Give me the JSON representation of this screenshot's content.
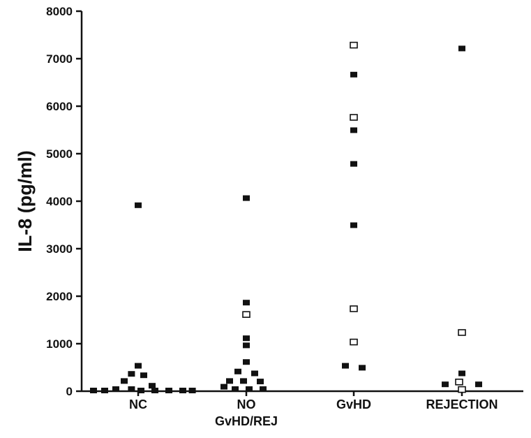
{
  "chart_data": {
    "type": "scatter",
    "ylabel": "IL-8 (pg/ml)",
    "xlabel": "",
    "ylim": [
      0,
      8000
    ],
    "yticks": [
      "0",
      "1000",
      "2000",
      "3000",
      "4000",
      "5000",
      "6000",
      "7000",
      "8000"
    ],
    "grid": false,
    "categories": [
      {
        "label_lines": [
          "NC"
        ]
      },
      {
        "label_lines": [
          "NO",
          "GvHD/REJ"
        ]
      },
      {
        "label_lines": [
          "GvHD"
        ]
      },
      {
        "label_lines": [
          "REJECTION"
        ]
      }
    ],
    "series": [
      {
        "marker": "filled-square",
        "points": [
          {
            "category": 0,
            "offset": -0.8,
            "y": 0
          },
          {
            "category": 0,
            "offset": -0.6,
            "y": 0
          },
          {
            "category": 0,
            "offset": -0.4,
            "y": 30
          },
          {
            "category": 0,
            "offset": -0.25,
            "y": 200
          },
          {
            "category": 0,
            "offset": -0.12,
            "y": 350
          },
          {
            "category": 0,
            "offset": -0.12,
            "y": 30
          },
          {
            "category": 0,
            "offset": 0.0,
            "y": 520
          },
          {
            "category": 0,
            "offset": 0.05,
            "y": 0
          },
          {
            "category": 0,
            "offset": 0.1,
            "y": 320
          },
          {
            "category": 0,
            "offset": 0.25,
            "y": 100
          },
          {
            "category": 0,
            "offset": 0.3,
            "y": 0
          },
          {
            "category": 0,
            "offset": 0.55,
            "y": 0
          },
          {
            "category": 0,
            "offset": 0.8,
            "y": 0
          },
          {
            "category": 0,
            "offset": 0.97,
            "y": 0
          },
          {
            "category": 0,
            "offset": 0.0,
            "y": 3900
          },
          {
            "category": 1,
            "offset": 0.0,
            "y": 4050
          },
          {
            "category": 1,
            "offset": 0.0,
            "y": 1850
          },
          {
            "category": 1,
            "offset": 0.0,
            "y": 1100
          },
          {
            "category": 1,
            "offset": 0.0,
            "y": 950
          },
          {
            "category": 1,
            "offset": 0.0,
            "y": 600
          },
          {
            "category": 1,
            "offset": -0.15,
            "y": 400
          },
          {
            "category": 1,
            "offset": 0.15,
            "y": 360
          },
          {
            "category": 1,
            "offset": -0.3,
            "y": 200
          },
          {
            "category": 1,
            "offset": -0.05,
            "y": 200
          },
          {
            "category": 1,
            "offset": 0.25,
            "y": 190
          },
          {
            "category": 1,
            "offset": -0.4,
            "y": 80
          },
          {
            "category": 1,
            "offset": -0.2,
            "y": 30
          },
          {
            "category": 1,
            "offset": 0.05,
            "y": 30
          },
          {
            "category": 1,
            "offset": 0.3,
            "y": 30
          },
          {
            "category": 2,
            "offset": 0.0,
            "y": 6650
          },
          {
            "category": 2,
            "offset": 0.0,
            "y": 5480
          },
          {
            "category": 2,
            "offset": 0.0,
            "y": 4770
          },
          {
            "category": 2,
            "offset": 0.0,
            "y": 3480
          },
          {
            "category": 2,
            "offset": -0.15,
            "y": 520
          },
          {
            "category": 2,
            "offset": 0.15,
            "y": 480
          },
          {
            "category": 3,
            "offset": 0.0,
            "y": 7200
          },
          {
            "category": 3,
            "offset": 0.0,
            "y": 360
          },
          {
            "category": 3,
            "offset": -0.3,
            "y": 130
          },
          {
            "category": 3,
            "offset": 0.3,
            "y": 130
          }
        ]
      },
      {
        "marker": "open-square",
        "points": [
          {
            "category": 1,
            "offset": 0.0,
            "y": 1600
          },
          {
            "category": 2,
            "offset": 0.0,
            "y": 7270
          },
          {
            "category": 2,
            "offset": 0.0,
            "y": 5750
          },
          {
            "category": 2,
            "offset": 0.0,
            "y": 1720
          },
          {
            "category": 2,
            "offset": 0.0,
            "y": 1020
          },
          {
            "category": 3,
            "offset": 0.0,
            "y": 1220
          },
          {
            "category": 3,
            "offset": -0.05,
            "y": 180
          },
          {
            "category": 3,
            "offset": 0.0,
            "y": 20
          }
        ]
      }
    ]
  }
}
